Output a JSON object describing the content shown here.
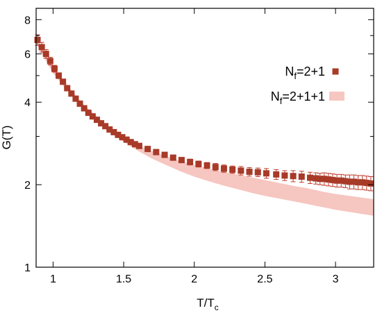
{
  "chart_data": {
    "type": "scatter",
    "xlabel": "T/T",
    "xlabel_sub": "c",
    "ylabel": "G(T)",
    "xlim": [
      0.88,
      3.27
    ],
    "ylim": [
      1,
      8.8
    ],
    "y_scale": "log",
    "grid": false,
    "legend_position": "top-right",
    "x_ticks": [
      {
        "value": 1,
        "label": "1"
      },
      {
        "value": 1.5,
        "label": "1.5"
      },
      {
        "value": 2,
        "label": "2"
      },
      {
        "value": 2.5,
        "label": "2.5"
      },
      {
        "value": 3,
        "label": "3"
      }
    ],
    "y_ticks": [
      {
        "value": 1,
        "label": "1"
      },
      {
        "value": 2,
        "label": "2"
      },
      {
        "value": 4,
        "label": "4"
      },
      {
        "value": 6,
        "label": "6"
      },
      {
        "value": 8,
        "label": "8"
      }
    ],
    "y_minor_ticks": [
      3,
      5,
      7
    ],
    "series": [
      {
        "name_main": "N",
        "name_sub": "f",
        "name_rest": "=2+1",
        "style": "points",
        "marker": "square",
        "color": "#a83a28",
        "error_color": "#c0392b",
        "x": [
          0.89,
          0.92,
          0.95,
          0.98,
          1.01,
          1.04,
          1.07,
          1.1,
          1.13,
          1.16,
          1.19,
          1.22,
          1.25,
          1.28,
          1.31,
          1.34,
          1.37,
          1.4,
          1.43,
          1.46,
          1.49,
          1.52,
          1.55,
          1.58,
          1.61,
          1.67,
          1.73,
          1.79,
          1.85,
          1.91,
          1.97,
          2.03,
          2.09,
          2.15,
          2.21,
          2.27,
          2.33,
          2.39,
          2.45,
          2.51,
          2.58,
          2.64,
          2.7,
          2.76,
          2.82,
          2.86,
          2.89,
          2.92,
          2.95,
          2.98,
          3.01,
          3.04,
          3.07,
          3.1,
          3.13,
          3.16,
          3.19,
          3.22,
          3.25
        ],
        "y": [
          6.75,
          6.35,
          6.0,
          5.65,
          5.3,
          5.0,
          4.75,
          4.5,
          4.3,
          4.12,
          3.95,
          3.8,
          3.66,
          3.55,
          3.45,
          3.35,
          3.27,
          3.18,
          3.11,
          3.04,
          2.98,
          2.92,
          2.86,
          2.81,
          2.77,
          2.7,
          2.63,
          2.57,
          2.51,
          2.46,
          2.42,
          2.38,
          2.35,
          2.32,
          2.29,
          2.27,
          2.25,
          2.23,
          2.22,
          2.2,
          2.18,
          2.16,
          2.15,
          2.14,
          2.12,
          2.11,
          2.1,
          2.1,
          2.09,
          2.08,
          2.07,
          2.07,
          2.06,
          2.05,
          2.05,
          2.04,
          2.04,
          2.03,
          2.02
        ],
        "err": [
          0.3,
          0.26,
          0.22,
          0.18,
          0.15,
          0.12,
          0.1,
          0.08,
          0.07,
          0.06,
          0.05,
          0.05,
          0.04,
          0.04,
          0.04,
          0.04,
          0.03,
          0.03,
          0.03,
          0.03,
          0.03,
          0.03,
          0.03,
          0.03,
          0.03,
          0.04,
          0.04,
          0.05,
          0.05,
          0.05,
          0.06,
          0.06,
          0.06,
          0.07,
          0.07,
          0.07,
          0.08,
          0.08,
          0.08,
          0.09,
          0.09,
          0.09,
          0.1,
          0.1,
          0.1,
          0.1,
          0.1,
          0.11,
          0.11,
          0.11,
          0.11,
          0.11,
          0.11,
          0.12,
          0.12,
          0.12,
          0.12,
          0.12,
          0.12
        ]
      },
      {
        "name_main": "N",
        "name_sub": "f",
        "name_rest": "=2+1+1",
        "style": "band",
        "color": "#f6c6c0",
        "x": [
          0.88,
          1.0,
          1.2,
          1.4,
          1.6,
          1.7,
          1.8,
          1.9,
          2.0,
          2.1,
          2.2,
          2.3,
          2.4,
          2.5,
          2.6,
          2.7,
          2.8,
          2.9,
          3.0,
          3.1,
          3.2,
          3.27
        ],
        "y_low": [
          6.55,
          5.1,
          3.82,
          3.1,
          2.66,
          2.49,
          2.36,
          2.24,
          2.14,
          2.06,
          1.99,
          1.93,
          1.87,
          1.82,
          1.78,
          1.74,
          1.7,
          1.66,
          1.62,
          1.59,
          1.56,
          1.54
        ],
        "y_high": [
          6.9,
          5.35,
          4.0,
          3.22,
          2.79,
          2.65,
          2.54,
          2.44,
          2.36,
          2.29,
          2.23,
          2.18,
          2.13,
          2.08,
          2.03,
          1.98,
          1.94,
          1.89,
          1.85,
          1.82,
          1.79,
          1.77
        ]
      }
    ]
  }
}
